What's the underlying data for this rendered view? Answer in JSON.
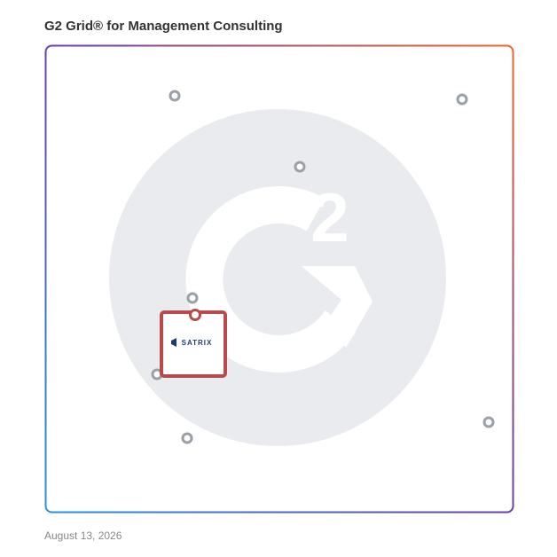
{
  "header": {
    "title": "G2 Grid® for Management Consulting"
  },
  "highlight": {
    "logo": "SATRIX"
  },
  "footer": {
    "date": "August 13, 2026"
  }
}
